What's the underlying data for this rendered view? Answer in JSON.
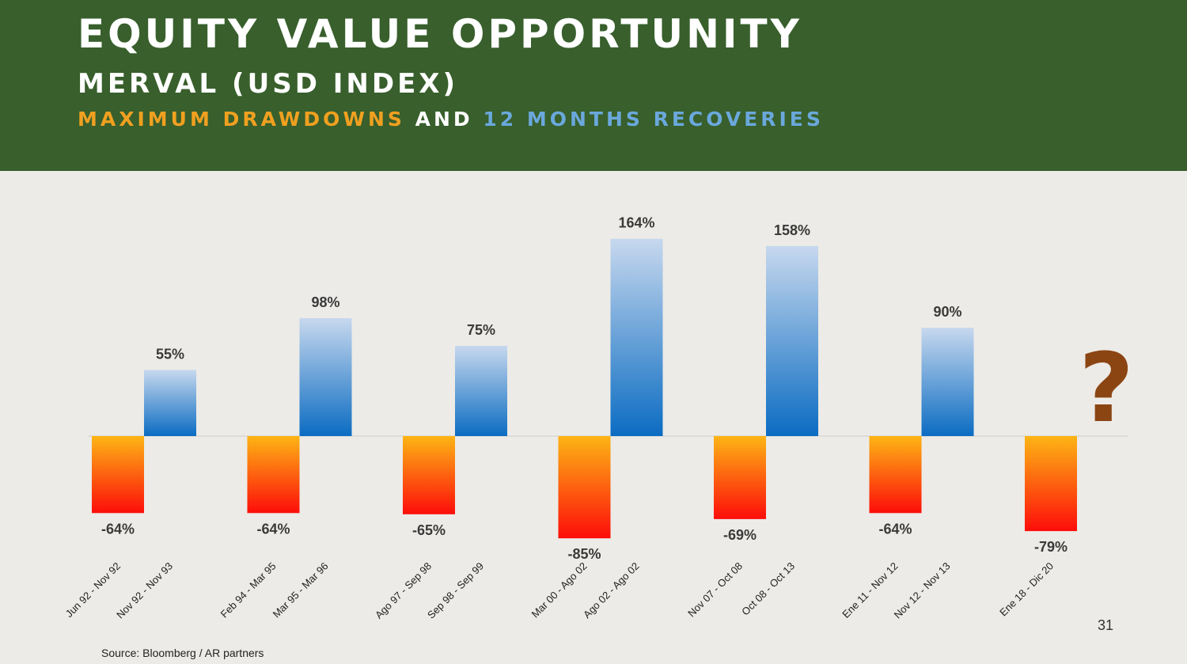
{
  "header": {
    "title": "EQUITY VALUE OPPORTUNITY",
    "subtitle": "MERVAL (USD INDEX)",
    "subtitle2_part1": "MAXIMUM DRAWDOWNS",
    "subtitle2_part2": "AND",
    "subtitle2_part3": "12 MONTHS RECOVERIES"
  },
  "chart_data": {
    "type": "bar",
    "title": "MERVAL (USD INDEX)",
    "ylim": [
      -0.85,
      1.64
    ],
    "grid": false,
    "series_colors": {
      "drawdown_top": "#fdb515",
      "drawdown_bottom": "#fd0d0a",
      "recovery_top": "#c7d8ee",
      "recovery_bottom": "#0b6cc2"
    },
    "groups": [
      {
        "drawdown": {
          "period": "Jun 92 - Nov 92",
          "value": -0.64,
          "label": "-64%"
        },
        "recovery": {
          "period": "Nov 92 - Nov 93",
          "value": 0.55,
          "label": "55%"
        }
      },
      {
        "drawdown": {
          "period": "Feb 94 - Mar 95",
          "value": -0.64,
          "label": "-64%"
        },
        "recovery": {
          "period": "Mar 95 - Mar 96",
          "value": 0.98,
          "label": "98%"
        }
      },
      {
        "drawdown": {
          "period": "Ago 97 - Sep 98",
          "value": -0.65,
          "label": "-65%"
        },
        "recovery": {
          "period": "Sep 98 - Sep 99",
          "value": 0.75,
          "label": "75%"
        }
      },
      {
        "drawdown": {
          "period": "Mar 00 - Ago 02",
          "value": -0.85,
          "label": "-85%"
        },
        "recovery": {
          "period": "Ago 02 - Ago 02",
          "value": 1.64,
          "label": "164%"
        }
      },
      {
        "drawdown": {
          "period": "Nov 07 - Oct 08",
          "value": -0.69,
          "label": "-69%"
        },
        "recovery": {
          "period": "Oct 08 - Oct 13",
          "value": 1.58,
          "label": "158%"
        }
      },
      {
        "drawdown": {
          "period": "Ene 11 - Nov 12",
          "value": -0.64,
          "label": "-64%"
        },
        "recovery": {
          "period": "Nov 12 - Nov 13",
          "value": 0.9,
          "label": "90%"
        }
      },
      {
        "drawdown": {
          "period": "Ene 18 - Dic 20",
          "value": -0.79,
          "label": "-79%"
        },
        "recovery": null
      }
    ],
    "question_mark": "?",
    "question_mark_color": "#8b4513"
  },
  "footer": {
    "source": "Source: Bloomberg / AR partners",
    "page_number": "31"
  }
}
